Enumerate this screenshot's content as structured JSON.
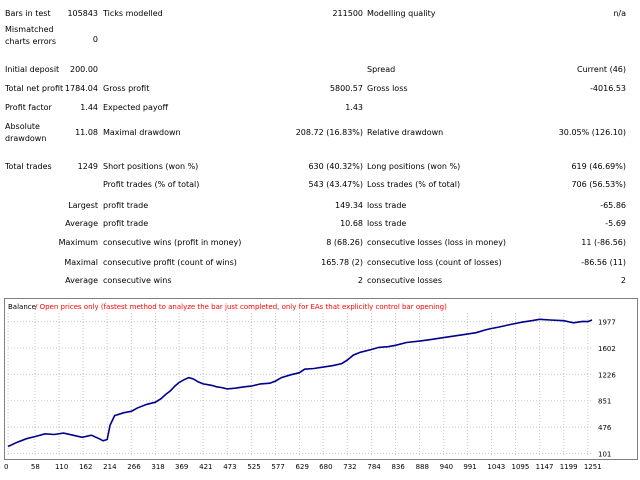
{
  "report": {
    "rows": [
      {
        "y": 14,
        "cells": [
          {
            "text": "Bars in test",
            "x": 5,
            "align": "left"
          },
          {
            "text": "105843",
            "x": 98,
            "align": "right"
          },
          {
            "text": "Ticks modelled",
            "x": 103,
            "align": "left"
          },
          {
            "text": "211500",
            "x": 363,
            "align": "right"
          },
          {
            "text": "Modelling quality",
            "x": 367,
            "align": "left"
          },
          {
            "text": "n/a",
            "x": 626,
            "align": "right"
          }
        ]
      },
      {
        "y": 30,
        "cells": [
          {
            "text": "Mismatched",
            "x": 5,
            "align": "left"
          }
        ]
      },
      {
        "y": 40,
        "cells": [
          {
            "text": "0",
            "x": 98,
            "align": "right"
          }
        ]
      },
      {
        "y": 42,
        "cells": [
          {
            "text": "charts errors",
            "x": 5,
            "align": "left"
          }
        ]
      },
      {
        "y": 70,
        "cells": [
          {
            "text": "Initial deposit",
            "x": 5,
            "align": "left"
          },
          {
            "text": "200.00",
            "x": 98,
            "align": "right"
          },
          {
            "text": "Spread",
            "x": 367,
            "align": "left"
          },
          {
            "text": "Current (46)",
            "x": 626,
            "align": "right"
          }
        ]
      },
      {
        "y": 89,
        "cells": [
          {
            "text": "Total net profit",
            "x": 5,
            "align": "left"
          },
          {
            "text": "1784.04",
            "x": 98,
            "align": "right"
          },
          {
            "text": "Gross profit",
            "x": 103,
            "align": "left"
          },
          {
            "text": "5800.57",
            "x": 363,
            "align": "right"
          },
          {
            "text": "Gross loss",
            "x": 367,
            "align": "left"
          },
          {
            "text": "-4016.53",
            "x": 626,
            "align": "right"
          }
        ]
      },
      {
        "y": 108,
        "cells": [
          {
            "text": "Profit factor",
            "x": 5,
            "align": "left"
          },
          {
            "text": "1.44",
            "x": 98,
            "align": "right"
          },
          {
            "text": "Expected payoff",
            "x": 103,
            "align": "left"
          },
          {
            "text": "1.43",
            "x": 363,
            "align": "right"
          }
        ]
      },
      {
        "y": 127,
        "cells": [
          {
            "text": "Absolute",
            "x": 5,
            "align": "left"
          }
        ]
      },
      {
        "y": 133,
        "cells": [
          {
            "text": "11.08",
            "x": 98,
            "align": "right"
          },
          {
            "text": "Maximal drawdown",
            "x": 103,
            "align": "left"
          },
          {
            "text": "208.72 (16.83%)",
            "x": 363,
            "align": "right"
          },
          {
            "text": "Relative drawdown",
            "x": 367,
            "align": "left"
          },
          {
            "text": "30.05% (126.10)",
            "x": 626,
            "align": "right"
          }
        ]
      },
      {
        "y": 139,
        "cells": [
          {
            "text": "drawdown",
            "x": 5,
            "align": "left"
          }
        ]
      },
      {
        "y": 167,
        "cells": [
          {
            "text": "Total trades",
            "x": 5,
            "align": "left"
          },
          {
            "text": "1249",
            "x": 98,
            "align": "right"
          },
          {
            "text": "Short positions (won %)",
            "x": 103,
            "align": "left"
          },
          {
            "text": "630 (40.32%)",
            "x": 363,
            "align": "right"
          },
          {
            "text": "Long positions (won %)",
            "x": 367,
            "align": "left"
          },
          {
            "text": "619 (46.69%)",
            "x": 626,
            "align": "right"
          }
        ]
      },
      {
        "y": 185,
        "cells": [
          {
            "text": "Profit trades (% of total)",
            "x": 103,
            "align": "left"
          },
          {
            "text": "543 (43.47%)",
            "x": 363,
            "align": "right"
          },
          {
            "text": "Loss trades (% of total)",
            "x": 367,
            "align": "left"
          },
          {
            "text": "706 (56.53%)",
            "x": 626,
            "align": "right"
          }
        ]
      },
      {
        "y": 206,
        "cells": [
          {
            "text": "Largest",
            "x": 98,
            "align": "right"
          },
          {
            "text": "profit trade",
            "x": 103,
            "align": "left"
          },
          {
            "text": "149.34",
            "x": 363,
            "align": "right"
          },
          {
            "text": "loss trade",
            "x": 367,
            "align": "left"
          },
          {
            "text": "-65.86",
            "x": 626,
            "align": "right"
          }
        ]
      },
      {
        "y": 224,
        "cells": [
          {
            "text": "Average",
            "x": 98,
            "align": "right"
          },
          {
            "text": "profit trade",
            "x": 103,
            "align": "left"
          },
          {
            "text": "10.68",
            "x": 363,
            "align": "right"
          },
          {
            "text": "loss trade",
            "x": 367,
            "align": "left"
          },
          {
            "text": "-5.69",
            "x": 626,
            "align": "right"
          }
        ]
      },
      {
        "y": 243,
        "cells": [
          {
            "text": "Maximum",
            "x": 98,
            "align": "right"
          },
          {
            "text": "consecutive wins (profit in money)",
            "x": 103,
            "align": "left"
          },
          {
            "text": "8 (68.26)",
            "x": 363,
            "align": "right"
          },
          {
            "text": "consecutive losses (loss in money)",
            "x": 367,
            "align": "left"
          },
          {
            "text": "11 (-86.56)",
            "x": 626,
            "align": "right"
          }
        ]
      },
      {
        "y": 263,
        "cells": [
          {
            "text": "Maximal",
            "x": 98,
            "align": "right"
          },
          {
            "text": "consecutive profit (count of wins)",
            "x": 103,
            "align": "left"
          },
          {
            "text": "165.78 (2)",
            "x": 363,
            "align": "right"
          },
          {
            "text": "consecutive loss (count of losses)",
            "x": 367,
            "align": "left"
          },
          {
            "text": "-86.56 (11)",
            "x": 626,
            "align": "right"
          }
        ]
      },
      {
        "y": 281,
        "cells": [
          {
            "text": "Average",
            "x": 98,
            "align": "right"
          },
          {
            "text": "consecutive wins",
            "x": 103,
            "align": "left"
          },
          {
            "text": "2",
            "x": 363,
            "align": "right"
          },
          {
            "text": "consecutive losses",
            "x": 367,
            "align": "left"
          },
          {
            "text": "2",
            "x": 626,
            "align": "right"
          }
        ]
      }
    ]
  },
  "chart_data": {
    "type": "line",
    "legend": {
      "series_label": "Balance",
      "separator": " / ",
      "note": "Open prices only (fastest method to analyze the bar just completed, only for EAs that explicitly control bar opening)"
    },
    "colors": {
      "line": "#00008b",
      "note": "#ff0000",
      "grid": "#c8c8c8"
    },
    "x_ticks": [
      0,
      58,
      110,
      162,
      214,
      266,
      318,
      369,
      421,
      473,
      525,
      577,
      629,
      680,
      732,
      784,
      836,
      888,
      940,
      991,
      1043,
      1095,
      1147,
      1199,
      1251
    ],
    "y_ticks": [
      101,
      476,
      851,
      1226,
      1602,
      1977
    ],
    "xlim": [
      0,
      1260
    ],
    "ylim": [
      50,
      2100
    ],
    "series": [
      {
        "name": "Balance",
        "x": [
          0,
          20,
          40,
          58,
          80,
          100,
          120,
          140,
          160,
          180,
          200,
          205,
          210,
          214,
          220,
          230,
          240,
          250,
          266,
          280,
          300,
          318,
          330,
          340,
          350,
          360,
          369,
          380,
          390,
          400,
          410,
          421,
          430,
          440,
          450,
          460,
          473,
          490,
          510,
          525,
          545,
          565,
          577,
          590,
          610,
          629,
          640,
          660,
          680,
          700,
          720,
          732,
          745,
          760,
          784,
          800,
          820,
          836,
          860,
          888,
          910,
          940,
          960,
          991,
          1010,
          1030,
          1043,
          1060,
          1080,
          1095,
          1110,
          1130,
          1147,
          1170,
          1199,
          1220,
          1240,
          1251,
          1260
        ],
        "y": [
          200,
          260,
          310,
          340,
          380,
          370,
          390,
          360,
          330,
          360,
          300,
          280,
          290,
          300,
          500,
          640,
          660,
          680,
          700,
          750,
          800,
          830,
          880,
          940,
          990,
          1060,
          1110,
          1150,
          1180,
          1160,
          1120,
          1090,
          1080,
          1070,
          1050,
          1040,
          1020,
          1030,
          1050,
          1060,
          1090,
          1100,
          1130,
          1180,
          1220,
          1250,
          1300,
          1310,
          1330,
          1350,
          1380,
          1430,
          1500,
          1540,
          1580,
          1610,
          1620,
          1640,
          1680,
          1700,
          1720,
          1750,
          1770,
          1800,
          1820,
          1860,
          1880,
          1900,
          1930,
          1950,
          1970,
          1990,
          2010,
          2000,
          1990,
          1960,
          1980,
          1977,
          2000
        ]
      }
    ]
  }
}
